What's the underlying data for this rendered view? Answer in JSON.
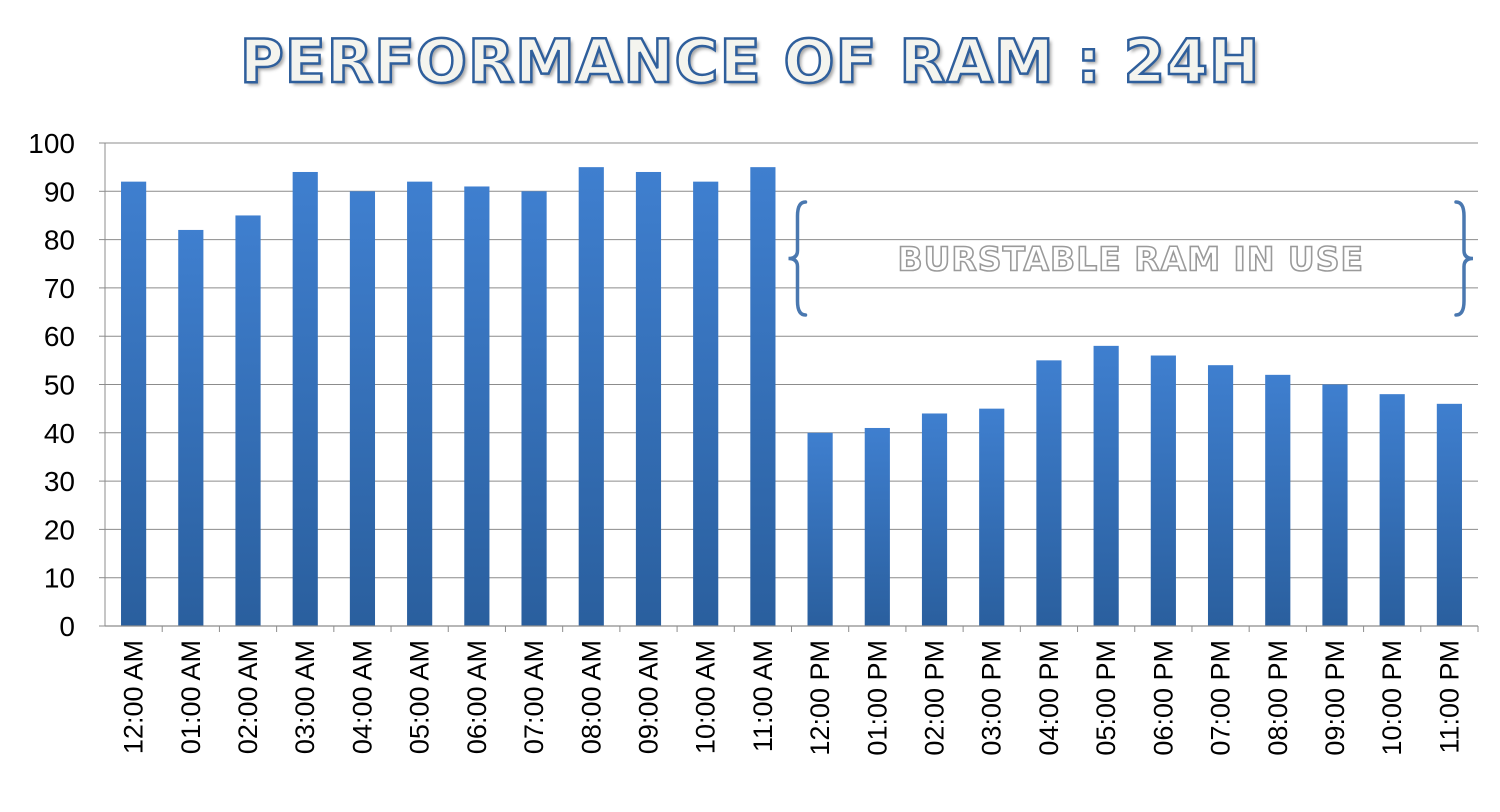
{
  "chart_data": {
    "type": "bar",
    "title": "PERFORMANCE OF RAM : 24H",
    "xlabel": "",
    "ylabel": "",
    "ylim": [
      0,
      100
    ],
    "yticks": [
      "0",
      "10",
      "20",
      "30",
      "40",
      "50",
      "60",
      "70",
      "80",
      "90",
      "100"
    ],
    "grid": true,
    "categories": [
      "12:00 AM",
      "01:00 AM",
      "02:00 AM",
      "03:00 AM",
      "04:00 AM",
      "05:00 AM",
      "06:00 AM",
      "07:00 AM",
      "08:00 AM",
      "09:00 AM",
      "10:00 AM",
      "11:00 AM",
      "12:00 PM",
      "01:00 PM",
      "02:00 PM",
      "03:00 PM",
      "04:00 PM",
      "05:00 PM",
      "06:00 PM",
      "07:00 PM",
      "08:00 PM",
      "09:00 PM",
      "10:00 PM",
      "11:00 PM"
    ],
    "values": [
      92,
      82,
      85,
      94,
      90,
      92,
      91,
      90,
      95,
      94,
      92,
      95,
      40,
      41,
      44,
      45,
      55,
      58,
      56,
      54,
      52,
      50,
      48,
      46
    ],
    "bar_color": "#3b78c4",
    "annotation": {
      "text": "BURSTABLE  RAM  IN  USE",
      "from_category": "12:00 PM",
      "to_category": "11:00 PM"
    }
  }
}
